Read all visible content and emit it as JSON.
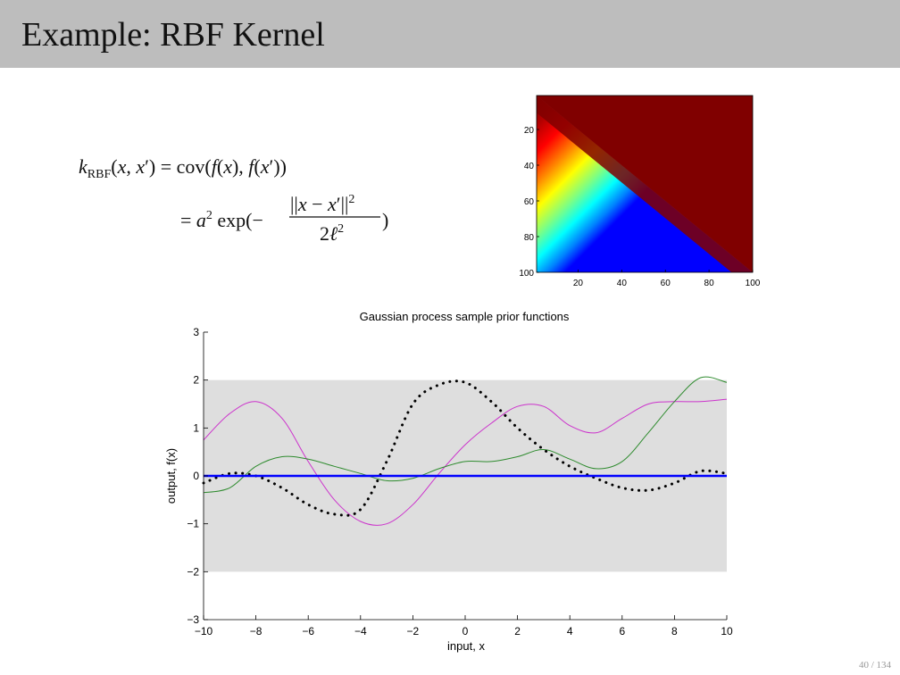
{
  "slide": {
    "title": "Example: RBF Kernel",
    "page_number": "40 / 134"
  },
  "formula": {
    "line1": "k_RBF(x, x′) = cov(f(x), f(x′))",
    "line2": "= a² exp(−||x − x′||² / 2ℓ²)"
  },
  "chart_data": [
    {
      "type": "heatmap",
      "title": "",
      "x_ticks": [
        20,
        40,
        60,
        80,
        100
      ],
      "y_ticks": [
        20,
        40,
        60,
        80,
        100
      ],
      "xlim": [
        1,
        100
      ],
      "ylim": [
        1,
        100
      ],
      "colormap": "jet",
      "description_of_values": "RBF covariance matrix, maximal on diagonal, decaying with |i-j|"
    },
    {
      "type": "line",
      "title": "Gaussian process sample prior functions",
      "xlabel": "input, x",
      "ylabel": "output, f(x)",
      "xlim": [
        -10,
        10
      ],
      "ylim": [
        -3,
        3
      ],
      "x_ticks": [
        "−10",
        "−8",
        "−6",
        "−4",
        "−2",
        "0",
        "2",
        "4",
        "6",
        "8",
        "10"
      ],
      "y_ticks": [
        "−3",
        "−2",
        "−1",
        "0",
        "1",
        "2",
        "3"
      ],
      "band": {
        "y_low": -2,
        "y_high": 2,
        "color": "#dedede"
      },
      "mean": {
        "y": 0,
        "color": "#0000ff"
      },
      "x": [
        -10,
        -9,
        -8,
        -7,
        -6,
        -5,
        -4,
        -3,
        -2,
        -1,
        0,
        1,
        2,
        3,
        4,
        5,
        6,
        7,
        8,
        9,
        10
      ],
      "series": [
        {
          "color": "#cc33cc",
          "style": "solid",
          "values": [
            0.75,
            1.3,
            1.55,
            1.2,
            0.3,
            -0.5,
            -0.95,
            -1.0,
            -0.6,
            0.05,
            0.65,
            1.1,
            1.45,
            1.45,
            1.05,
            0.9,
            1.2,
            1.5,
            1.55,
            1.55,
            1.6
          ]
        },
        {
          "color": "#2e8b2e",
          "style": "solid",
          "values": [
            -0.35,
            -0.25,
            0.2,
            0.4,
            0.35,
            0.2,
            0.05,
            -0.1,
            -0.05,
            0.15,
            0.3,
            0.3,
            0.4,
            0.55,
            0.35,
            0.15,
            0.3,
            0.9,
            1.55,
            2.05,
            1.95
          ]
        },
        {
          "color": "#000000",
          "style": "dotted",
          "values": [
            -0.15,
            0.05,
            0.0,
            -0.25,
            -0.6,
            -0.8,
            -0.7,
            0.3,
            1.5,
            1.9,
            1.95,
            1.55,
            1.0,
            0.55,
            0.2,
            -0.05,
            -0.25,
            -0.3,
            -0.15,
            0.1,
            0.05
          ]
        }
      ]
    }
  ]
}
